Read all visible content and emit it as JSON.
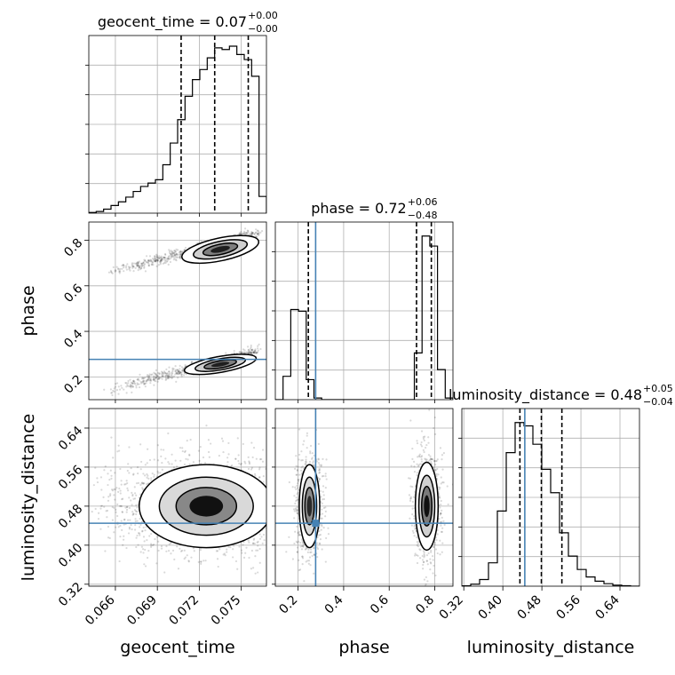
{
  "chart_data": {
    "type": "corner",
    "parameters": [
      "geocent_time",
      "phase",
      "luminosity_distance"
    ],
    "axis_labels": {
      "geocent_time": "geocent_time",
      "phase": "phase",
      "luminosity_distance": "luminosity_distance"
    },
    "ranges": {
      "geocent_time": [
        0.0641,
        0.0768
      ],
      "phase": [
        0.1,
        0.88
      ],
      "luminosity_distance": [
        0.316,
        0.68
      ]
    },
    "ticks": {
      "geocent_time": [
        {
          "v": 0.066,
          "l": "0.066"
        },
        {
          "v": 0.069,
          "l": "0.069"
        },
        {
          "v": 0.072,
          "l": "0.072"
        },
        {
          "v": 0.075,
          "l": "0.075"
        }
      ],
      "phase": [
        {
          "v": 0.2,
          "l": "0.2"
        },
        {
          "v": 0.4,
          "l": "0.4"
        },
        {
          "v": 0.6,
          "l": "0.6"
        },
        {
          "v": 0.8,
          "l": "0.8"
        }
      ],
      "luminosity_distance": [
        {
          "v": 0.32,
          "l": "0.32"
        },
        {
          "v": 0.4,
          "l": "0.40"
        },
        {
          "v": 0.48,
          "l": "0.48"
        },
        {
          "v": 0.56,
          "l": "0.56"
        },
        {
          "v": 0.64,
          "l": "0.64"
        }
      ]
    },
    "titles": {
      "geocent_time": {
        "name": "geocent_time",
        "median": "0.07",
        "plus": "+0.00",
        "minus": "−0.00"
      },
      "phase": {
        "name": "phase",
        "median": "0.72",
        "plus": "+0.06",
        "minus": "−0.48"
      },
      "luminosity_distance": {
        "name": "luminosity_distance",
        "median": "0.48",
        "plus": "+0.05",
        "minus": "−0.04"
      }
    },
    "quantiles": {
      "geocent_time": [
        0.0707,
        0.0731,
        0.0755
      ],
      "phase": [
        0.245,
        0.72,
        0.785
      ],
      "luminosity_distance": [
        0.435,
        0.479,
        0.521
      ]
    },
    "truths": {
      "phase": 0.277,
      "luminosity_distance": 0.445
    },
    "truth_color": "#4682b4",
    "histograms": {
      "geocent_time": [
        0.004,
        0.01,
        0.024,
        0.046,
        0.068,
        0.096,
        0.13,
        0.16,
        0.18,
        0.2,
        0.29,
        0.42,
        0.56,
        0.7,
        0.8,
        0.86,
        0.93,
        0.99,
        0.98,
        1.0,
        0.95,
        0.92,
        0.82,
        0.1
      ],
      "phase": [
        0.0,
        0.14,
        0.54,
        0.53,
        0.12,
        0.01,
        0.0,
        0.0,
        0.0,
        0.0,
        0.0,
        0.0,
        0.0,
        0.0,
        0.0,
        0.0,
        0.0,
        0.0,
        0.28,
        0.98,
        0.92,
        0.18,
        0.01
      ],
      "luminosity_distance": [
        0.002,
        0.012,
        0.04,
        0.14,
        0.45,
        0.8,
        0.98,
        0.96,
        0.85,
        0.7,
        0.56,
        0.32,
        0.18,
        0.1,
        0.055,
        0.03,
        0.015,
        0.006,
        0.003,
        0.0
      ]
    },
    "colors": {
      "hist": "#000000",
      "grid": "#b0b0b0",
      "quantile": "#000000"
    }
  }
}
